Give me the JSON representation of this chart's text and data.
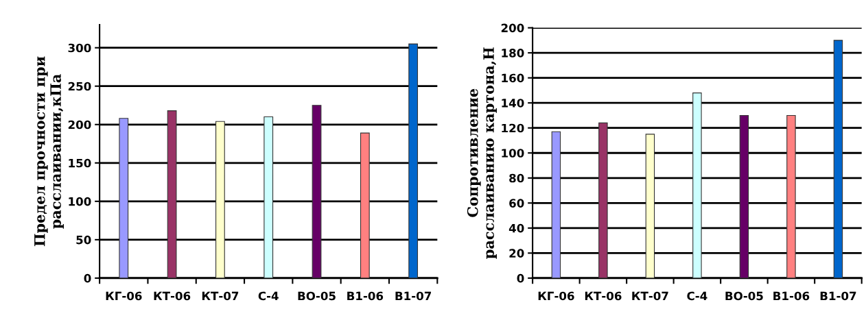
{
  "chart_data": [
    {
      "type": "bar",
      "ylabel": "Предел прочности при\nрасслаивании,кПа",
      "categories": [
        "КГ-06",
        "КТ-06",
        "КТ-07",
        "С-4",
        "ВО-05",
        "В1-06",
        "В1-07"
      ],
      "values": [
        208,
        218,
        204,
        210,
        225,
        189,
        305
      ],
      "colors": [
        "#9999ff",
        "#993366",
        "#ffffcc",
        "#ccffff",
        "#660066",
        "#ff8080",
        "#0066cc"
      ],
      "ylim": [
        0,
        330
      ],
      "yticks": [
        0,
        50,
        100,
        150,
        200,
        250,
        300
      ],
      "grid": "y"
    },
    {
      "type": "bar",
      "ylabel": "Сопротивление\nрасслаиванию картона,Н",
      "categories": [
        "КГ-06",
        "КТ-06",
        "КТ-07",
        "С-4",
        "ВО-05",
        "В1-06",
        "В1-07"
      ],
      "values": [
        117,
        124,
        115,
        148,
        130,
        130,
        190
      ],
      "colors": [
        "#9999ff",
        "#993366",
        "#ffffcc",
        "#ccffff",
        "#660066",
        "#ff8080",
        "#0066cc"
      ],
      "ylim": [
        0,
        200
      ],
      "yticks": [
        0,
        20,
        40,
        60,
        80,
        100,
        120,
        140,
        160,
        180,
        200
      ],
      "grid": "y"
    }
  ]
}
